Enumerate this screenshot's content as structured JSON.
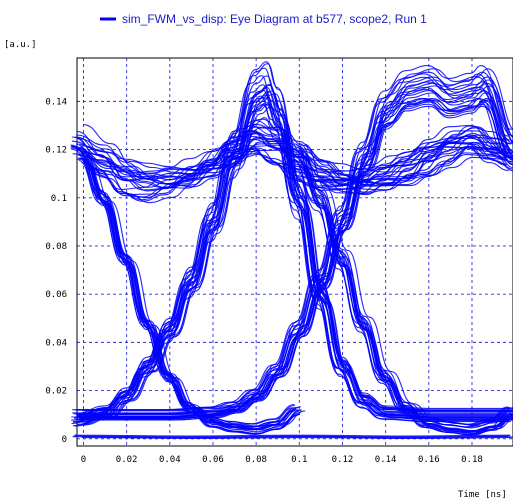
{
  "chart_data": {
    "type": "line",
    "title": "",
    "legend": {
      "placement": "top-center",
      "entries": [
        {
          "name": "sim_FWM_vs_disp: Eye Diagram at b577, scope2, Run 1",
          "color": "#0000ff"
        }
      ]
    },
    "ylabel": "[a.u.]",
    "xlabel": "Time [ns]",
    "xlim": [
      -0.003,
      0.199
    ],
    "ylim": [
      -0.003,
      0.158
    ],
    "x_ticks": [
      {
        "value": 0,
        "label": "0"
      },
      {
        "value": 0.02,
        "label": "0.02"
      },
      {
        "value": 0.04,
        "label": "0.04"
      },
      {
        "value": 0.06,
        "label": "0.06"
      },
      {
        "value": 0.08,
        "label": "0.08"
      },
      {
        "value": 0.1,
        "label": "0.1"
      },
      {
        "value": 0.12,
        "label": "0.12"
      },
      {
        "value": 0.14,
        "label": "0.14"
      },
      {
        "value": 0.16,
        "label": "0.16"
      },
      {
        "value": 0.18,
        "label": "0.18"
      }
    ],
    "y_ticks": [
      {
        "value": 0,
        "label": "0"
      },
      {
        "value": 0.02,
        "label": "0.02"
      },
      {
        "value": 0.04,
        "label": "0.04"
      },
      {
        "value": 0.06,
        "label": "0.06"
      },
      {
        "value": 0.08,
        "label": "0.08"
      },
      {
        "value": 0.1,
        "label": "0.1"
      },
      {
        "value": 0.12,
        "label": "0.12"
      },
      {
        "value": 0.14,
        "label": "0.14"
      }
    ],
    "grid": true,
    "bit_period_ns": 0.1,
    "peak_times_ns": [
      0.082,
      0.182
    ],
    "eye_crossings": [
      {
        "x": 0.034,
        "y": 0.036
      },
      {
        "x": 0.134,
        "y": 0.036
      }
    ],
    "levels": {
      "mark_high": 0.112,
      "mark_peak_max": 0.15,
      "space_low": 0.0,
      "space_pedestal": 0.01
    },
    "series": [
      {
        "name": "sim_FWM_vs_disp: Eye Diagram at b577, scope2, Run 1",
        "color": "#0000ff",
        "groups": [
          {
            "kind": "falling_edge",
            "points": [
              [
                0.0,
                0.118
              ],
              [
                0.01,
                0.1
              ],
              [
                0.02,
                0.075
              ],
              [
                0.03,
                0.048
              ],
              [
                0.04,
                0.026
              ],
              [
                0.05,
                0.013
              ],
              [
                0.06,
                0.007
              ],
              [
                0.07,
                0.005
              ],
              [
                0.08,
                0.004
              ],
              [
                0.09,
                0.006
              ],
              [
                0.1,
                0.012
              ]
            ]
          },
          {
            "kind": "falling_edge",
            "points": [
              [
                0.1,
                0.118
              ],
              [
                0.11,
                0.1
              ],
              [
                0.12,
                0.075
              ],
              [
                0.13,
                0.048
              ],
              [
                0.14,
                0.026
              ],
              [
                0.15,
                0.013
              ],
              [
                0.16,
                0.007
              ],
              [
                0.17,
                0.005
              ],
              [
                0.18,
                0.004
              ],
              [
                0.19,
                0.006
              ],
              [
                0.199,
                0.011
              ]
            ]
          },
          {
            "kind": "rising_pulse",
            "points": [
              [
                -0.003,
                0.008
              ],
              [
                0.01,
                0.011
              ],
              [
                0.02,
                0.018
              ],
              [
                0.03,
                0.03
              ],
              [
                0.04,
                0.045
              ],
              [
                0.05,
                0.065
              ],
              [
                0.06,
                0.09
              ],
              [
                0.07,
                0.118
              ],
              [
                0.08,
                0.142
              ],
              [
                0.085,
                0.145
              ],
              [
                0.09,
                0.135
              ],
              [
                0.1,
                0.1
              ],
              [
                0.11,
                0.06
              ],
              [
                0.12,
                0.03
              ],
              [
                0.13,
                0.016
              ],
              [
                0.14,
                0.011
              ],
              [
                0.16,
                0.01
              ],
              [
                0.18,
                0.01
              ],
              [
                0.199,
                0.01
              ]
            ]
          },
          {
            "kind": "rising_pulse",
            "points": [
              [
                -0.003,
                0.01
              ],
              [
                0.02,
                0.01
              ],
              [
                0.04,
                0.01
              ],
              [
                0.06,
                0.011
              ],
              [
                0.07,
                0.013
              ],
              [
                0.08,
                0.018
              ],
              [
                0.09,
                0.028
              ],
              [
                0.1,
                0.045
              ],
              [
                0.11,
                0.065
              ],
              [
                0.12,
                0.09
              ],
              [
                0.13,
                0.115
              ],
              [
                0.14,
                0.135
              ],
              [
                0.15,
                0.143
              ],
              [
                0.16,
                0.145
              ],
              [
                0.17,
                0.14
              ],
              [
                0.18,
                0.142
              ],
              [
                0.185,
                0.145
              ],
              [
                0.199,
                0.12
              ]
            ]
          },
          {
            "kind": "mark_level",
            "points": [
              [
                -0.003,
                0.122
              ],
              [
                0.01,
                0.115
              ],
              [
                0.02,
                0.109
              ],
              [
                0.03,
                0.107
              ],
              [
                0.04,
                0.108
              ],
              [
                0.05,
                0.11
              ],
              [
                0.06,
                0.114
              ],
              [
                0.07,
                0.12
              ],
              [
                0.08,
                0.125
              ],
              [
                0.09,
                0.122
              ],
              [
                0.1,
                0.116
              ],
              [
                0.11,
                0.111
              ],
              [
                0.12,
                0.108
              ],
              [
                0.13,
                0.107
              ],
              [
                0.14,
                0.109
              ],
              [
                0.15,
                0.112
              ],
              [
                0.16,
                0.117
              ],
              [
                0.17,
                0.122
              ],
              [
                0.18,
                0.125
              ],
              [
                0.19,
                0.121
              ],
              [
                0.199,
                0.117
              ]
            ]
          },
          {
            "kind": "space_level",
            "points": [
              [
                -0.003,
                0.0008
              ],
              [
                0.05,
                0.0004
              ],
              [
                0.1,
                0.0008
              ],
              [
                0.15,
                0.0004
              ],
              [
                0.199,
                0.0008
              ]
            ]
          }
        ]
      }
    ]
  }
}
